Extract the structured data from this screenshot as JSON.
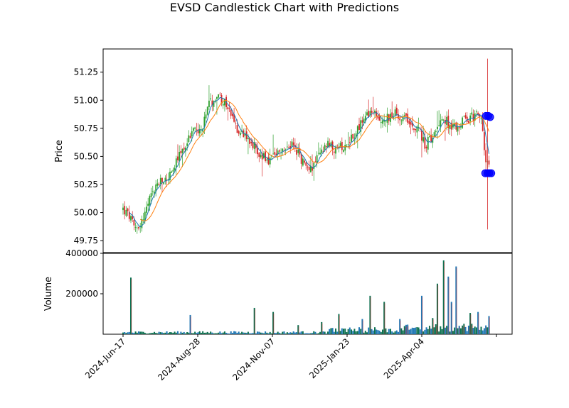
{
  "chart_data": {
    "type": "candlestick",
    "title": "EVSD Candlestick Chart with Predictions",
    "price_axis": {
      "ylabel": "Price",
      "ylim": [
        49.65,
        51.45
      ],
      "ticks": [
        "49.75",
        "50.00",
        "50.25",
        "50.50",
        "50.75",
        "51.00",
        "51.25"
      ]
    },
    "volume_axis": {
      "ylabel": "Volume",
      "ylim": [
        0,
        400000
      ],
      "ticks": [
        "200000",
        "400000"
      ]
    },
    "x_tick_labels": [
      "2024-Jun-17",
      "2024-Aug-28",
      "2024-Nov-07",
      "2025-Jan-23",
      "2025-Apr-04"
    ],
    "x_range": [
      0,
      100
    ],
    "x_tick_positions": [
      0,
      20,
      40,
      60,
      80
    ],
    "x_last_tick": 100,
    "close_anchors": [
      [
        0,
        50.03
      ],
      [
        2,
        49.95
      ],
      [
        3,
        49.85
      ],
      [
        5,
        49.92
      ],
      [
        7,
        50.1
      ],
      [
        9,
        50.25
      ],
      [
        11,
        50.28
      ],
      [
        13,
        50.35
      ],
      [
        15,
        50.5
      ],
      [
        17,
        50.62
      ],
      [
        19,
        50.75
      ],
      [
        21,
        50.72
      ],
      [
        23,
        50.95
      ],
      [
        25,
        51.05
      ],
      [
        27,
        51.0
      ],
      [
        29,
        50.85
      ],
      [
        31,
        50.72
      ],
      [
        33,
        50.7
      ],
      [
        35,
        50.6
      ],
      [
        37,
        50.5
      ],
      [
        39,
        50.45
      ],
      [
        41,
        50.5
      ],
      [
        43,
        50.55
      ],
      [
        45,
        50.6
      ],
      [
        47,
        50.52
      ],
      [
        49,
        50.4
      ],
      [
        51,
        50.42
      ],
      [
        53,
        50.55
      ],
      [
        55,
        50.6
      ],
      [
        57,
        50.55
      ],
      [
        59,
        50.6
      ],
      [
        61,
        50.65
      ],
      [
        63,
        50.75
      ],
      [
        65,
        50.85
      ],
      [
        67,
        50.88
      ],
      [
        69,
        50.82
      ],
      [
        71,
        50.85
      ],
      [
        73,
        50.88
      ],
      [
        75,
        50.85
      ],
      [
        77,
        50.8
      ],
      [
        79,
        50.75
      ],
      [
        81,
        50.6
      ],
      [
        83,
        50.7
      ],
      [
        85,
        50.85
      ],
      [
        87,
        50.8
      ],
      [
        89,
        50.75
      ],
      [
        91,
        50.82
      ],
      [
        93,
        50.85
      ],
      [
        95,
        50.88
      ],
      [
        96,
        50.8
      ],
      [
        97,
        50.5
      ],
      [
        98,
        50.4
      ]
    ],
    "volume_spikes": [
      [
        2,
        280000
      ],
      [
        18,
        95000
      ],
      [
        35,
        130000
      ],
      [
        40,
        110000
      ],
      [
        47,
        45000
      ],
      [
        53,
        60000
      ],
      [
        58,
        100000
      ],
      [
        64,
        75000
      ],
      [
        66,
        190000
      ],
      [
        70,
        160000
      ],
      [
        74,
        75000
      ],
      [
        80,
        190000
      ],
      [
        83,
        80000
      ],
      [
        84,
        250000
      ],
      [
        86,
        365000
      ],
      [
        87,
        285000
      ],
      [
        88,
        160000
      ],
      [
        89,
        335000
      ],
      [
        93,
        105000
      ],
      [
        95,
        110000
      ],
      [
        98,
        90000
      ],
      [
        99,
        105000
      ]
    ],
    "predictions": [
      {
        "x": 97.2,
        "y": 50.86
      },
      {
        "x": 97.8,
        "y": 50.86
      },
      {
        "x": 98.3,
        "y": 50.85
      },
      {
        "x": 97.0,
        "y": 50.35
      },
      {
        "x": 97.6,
        "y": 50.35
      },
      {
        "x": 98.1,
        "y": 50.35
      },
      {
        "x": 98.6,
        "y": 50.35
      }
    ],
    "wick_extremes": {
      "x": 97.6,
      "high": 51.37,
      "low": 49.85
    },
    "colors": {
      "up": "#2ca02c",
      "down": "#d62728",
      "ma_fast": "#1f77b4",
      "ma_slow": "#ff7f0e",
      "prediction": "#0000ff",
      "volume_up": "#1f77b4",
      "volume_down": "#0d7050"
    }
  }
}
